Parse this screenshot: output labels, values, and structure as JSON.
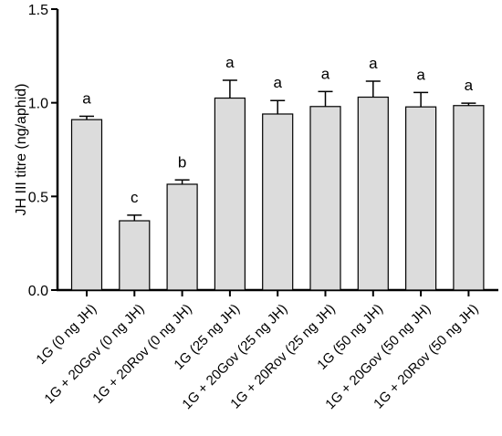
{
  "chart_data": {
    "type": "bar",
    "ylabel": "JH III titre (ng/aphid)",
    "ylim": [
      0,
      1.5
    ],
    "yticks": [
      "0.0",
      "0.5",
      "1.0",
      "1.5"
    ],
    "grid": false,
    "legend": "none",
    "categories": [
      "1G (0 ng JH)",
      "1G + 20Gov (0 ng JH)",
      "1G + 20Rov (0 ng JH)",
      "1G (25 ng JH)",
      "1G + 20Gov (25 ng JH)",
      "1G + 20Rov (25 ng JH)",
      "1G (50 ng JH)",
      "1G + 20Gov (50 ng JH)",
      "1G + 20Rov (50 ng JH)"
    ],
    "values": [
      0.91,
      0.37,
      0.565,
      1.025,
      0.94,
      0.98,
      1.03,
      0.978,
      0.985
    ],
    "errors": [
      0.018,
      0.03,
      0.023,
      0.095,
      0.072,
      0.08,
      0.085,
      0.077,
      0.013
    ],
    "significance": [
      "a",
      "c",
      "b",
      "a",
      "a",
      "a",
      "a",
      "a",
      "a"
    ],
    "colors": {
      "bar_fill": "#dcdcdc",
      "bar_stroke": "#000000",
      "axis": "#000000"
    }
  }
}
